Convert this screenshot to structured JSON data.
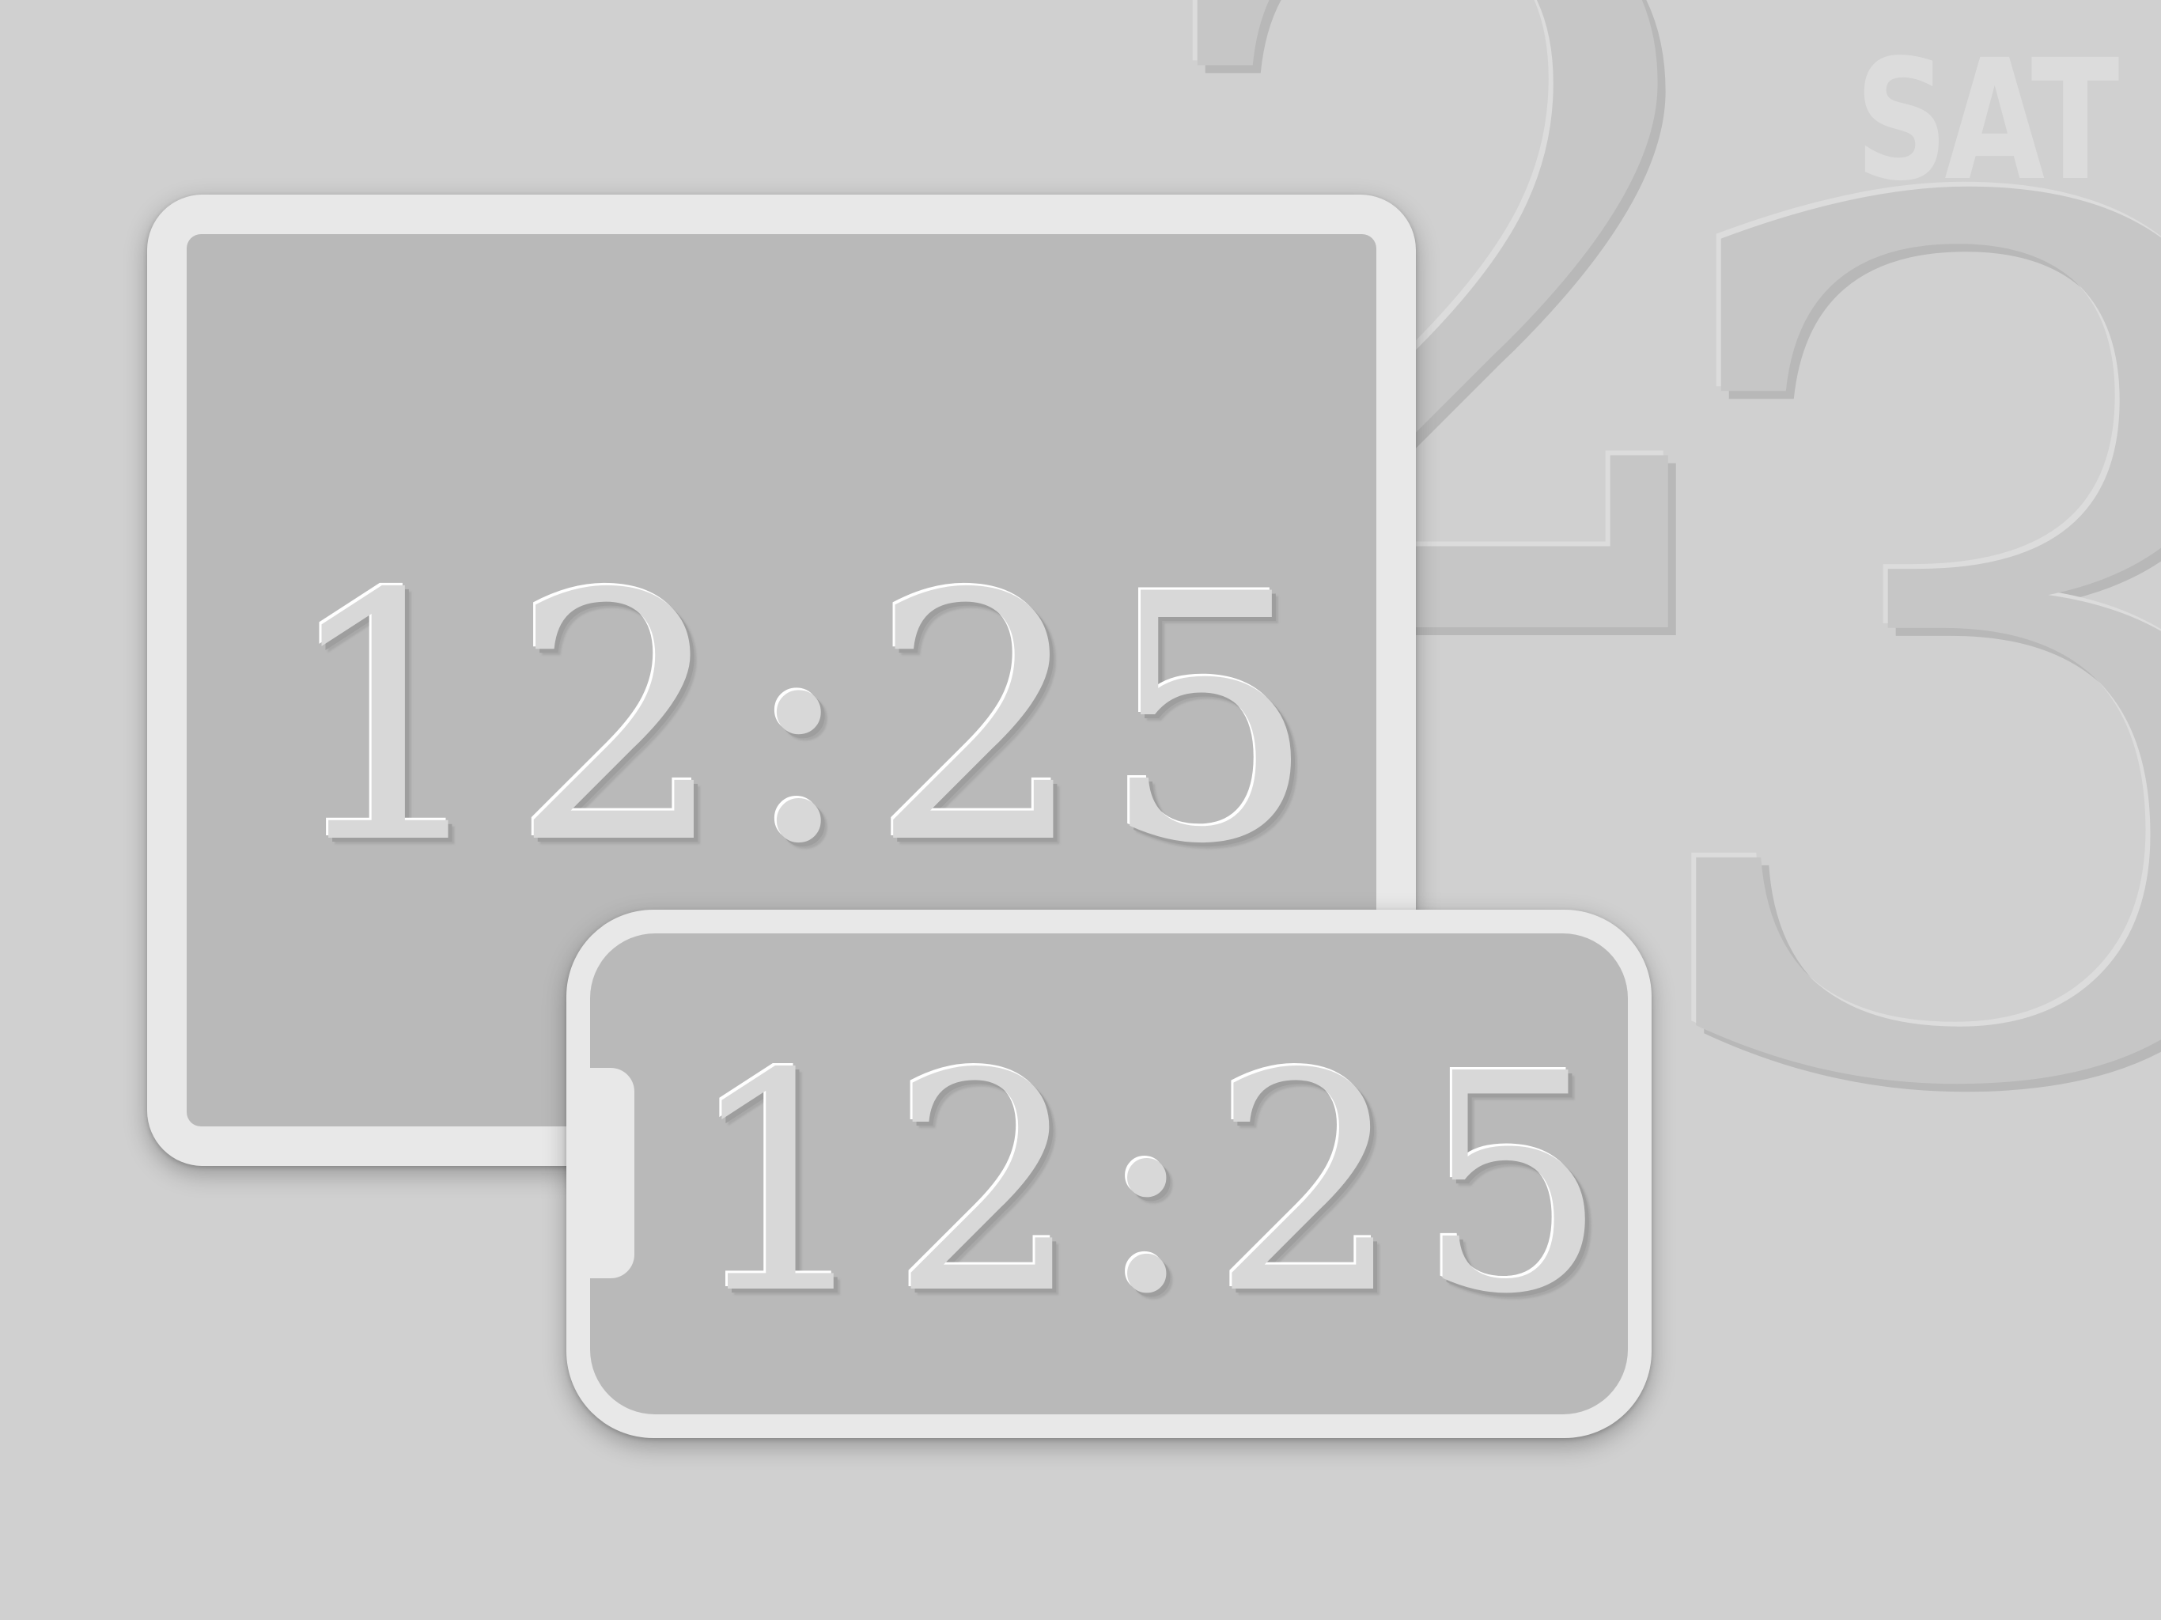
{
  "background": {
    "date_digits": "23",
    "weekday": "SAT"
  },
  "tablet": {
    "time": "12:25"
  },
  "phone": {
    "time": "12:25"
  },
  "colors": {
    "background": "#d0d0d0",
    "device_frame": "#e8e8e8",
    "screen": "#b9b9b9",
    "digits": "#d8d8d8"
  }
}
